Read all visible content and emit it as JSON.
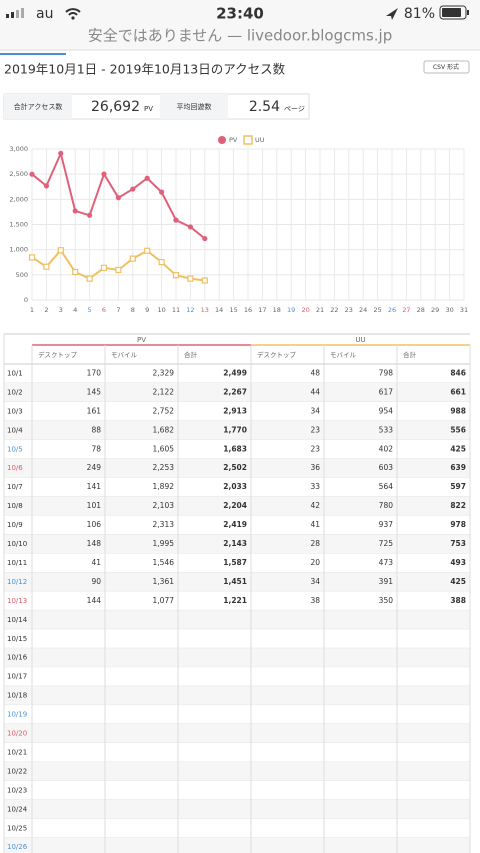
{
  "status_bar": {
    "carrier": "au",
    "time": "23:40",
    "battery": "81%"
  },
  "url_bar": {
    "text": "安全ではありません — livedoor.blogcms.jp"
  },
  "header": {
    "title": "2019年10月1日 - 2019年10月13日のアクセス数",
    "csv_button": "CSV 形式"
  },
  "summary": {
    "total_label": "合計アクセス数",
    "total_value": "26,692",
    "total_unit": "PV",
    "avg_label": "平均回遊数",
    "avg_value": "2.54",
    "avg_unit": "ページ"
  },
  "chart_data": {
    "type": "line",
    "x": [
      1,
      2,
      3,
      4,
      5,
      6,
      7,
      8,
      9,
      10,
      11,
      12,
      13,
      14,
      15,
      16,
      17,
      18,
      19,
      20,
      21,
      22,
      23,
      24,
      25,
      26,
      27,
      28,
      29,
      30,
      31
    ],
    "xlim": [
      1,
      31
    ],
    "xticks": [
      1,
      2,
      3,
      4,
      5,
      6,
      7,
      8,
      9,
      10,
      11,
      12,
      13,
      14,
      15,
      16,
      17,
      18,
      19,
      20,
      21,
      22,
      23,
      24,
      25,
      26,
      27,
      28,
      29,
      30,
      31
    ],
    "ylim": [
      0,
      3000
    ],
    "yticks": [
      0,
      500,
      {
        "value": 1000,
        "label": "1,000"
      },
      {
        "value": 1500,
        "label": "1,500"
      },
      {
        "value": 2000,
        "label": "2,000"
      },
      {
        "value": 2500,
        "label": "2,500"
      },
      {
        "value": 3000,
        "label": "3,000"
      }
    ],
    "grid": true,
    "legend": "top",
    "weekend": {
      "sat": [
        5,
        12,
        19,
        26
      ],
      "sun": [
        6,
        13,
        20,
        27
      ],
      "sat_color": "#4a90d9",
      "sun_color": "#e05a6a"
    },
    "series": [
      {
        "name": "PV",
        "color": "#e0607a",
        "marker": "circle",
        "values": [
          2499,
          2267,
          2913,
          1770,
          1683,
          2502,
          2033,
          2204,
          2419,
          2143,
          1587,
          1451,
          1221,
          null,
          null,
          null,
          null,
          null,
          null,
          null,
          null,
          null,
          null,
          null,
          null,
          null,
          null,
          null,
          null,
          null,
          null
        ]
      },
      {
        "name": "UU",
        "color": "#f0c060",
        "marker": "square",
        "values": [
          846,
          661,
          988,
          556,
          425,
          639,
          597,
          822,
          978,
          753,
          493,
          425,
          388,
          null,
          null,
          null,
          null,
          null,
          null,
          null,
          null,
          null,
          null,
          null,
          null,
          null,
          null,
          null,
          null,
          null,
          null
        ]
      }
    ]
  },
  "table": {
    "groups": [
      "PV",
      "UU"
    ],
    "group_colors": [
      "#e0607a",
      "#f0c060"
    ],
    "columns": [
      "デスクトップ",
      "モバイル",
      "合計",
      "デスクトップ",
      "モバイル",
      "合計"
    ],
    "rows": [
      [
        "10/1",
        "170",
        "2,329",
        "2,499",
        "48",
        "798",
        "846"
      ],
      [
        "10/2",
        "145",
        "2,122",
        "2,267",
        "44",
        "617",
        "661"
      ],
      [
        "10/3",
        "161",
        "2,752",
        "2,913",
        "34",
        "954",
        "988"
      ],
      [
        "10/4",
        "88",
        "1,682",
        "1,770",
        "23",
        "533",
        "556"
      ],
      [
        "10/5",
        "78",
        "1,605",
        "1,683",
        "23",
        "402",
        "425"
      ],
      [
        "10/6",
        "249",
        "2,253",
        "2,502",
        "36",
        "603",
        "639"
      ],
      [
        "10/7",
        "141",
        "1,892",
        "2,033",
        "33",
        "564",
        "597"
      ],
      [
        "10/8",
        "101",
        "2,103",
        "2,204",
        "42",
        "780",
        "822"
      ],
      [
        "10/9",
        "106",
        "2,313",
        "2,419",
        "41",
        "937",
        "978"
      ],
      [
        "10/10",
        "148",
        "1,995",
        "2,143",
        "28",
        "725",
        "753"
      ],
      [
        "10/11",
        "41",
        "1,546",
        "1,587",
        "20",
        "473",
        "493"
      ],
      [
        "10/12",
        "90",
        "1,361",
        "1,451",
        "34",
        "391",
        "425"
      ],
      [
        "10/13",
        "144",
        "1,077",
        "1,221",
        "38",
        "350",
        "388"
      ],
      [
        "10/14"
      ],
      [
        "10/15"
      ],
      [
        "10/16"
      ],
      [
        "10/17"
      ],
      [
        "10/18"
      ],
      [
        "10/19"
      ],
      [
        "10/20"
      ],
      [
        "10/21"
      ],
      [
        "10/22"
      ],
      [
        "10/23"
      ],
      [
        "10/24"
      ],
      [
        "10/25"
      ],
      [
        "10/26"
      ]
    ]
  }
}
